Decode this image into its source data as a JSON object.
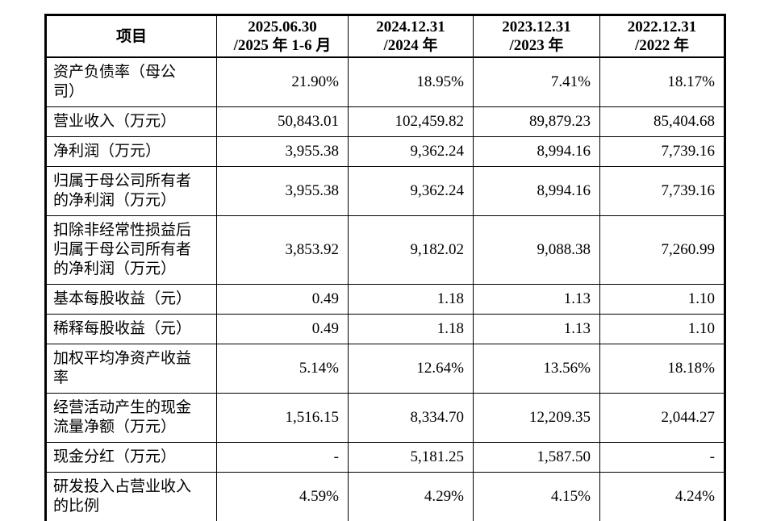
{
  "table": {
    "columns": [
      "项目",
      "2025.06.30\n/2025 年 1-6 月",
      "2024.12.31\n/2024 年",
      "2023.12.31\n/2023 年",
      "2022.12.31\n/2022 年"
    ],
    "rows": [
      {
        "label": "资产负债率（母公\n司）",
        "values": [
          "21.90%",
          "18.95%",
          "7.41%",
          "18.17%"
        ]
      },
      {
        "label": "营业收入（万元）",
        "values": [
          "50,843.01",
          "102,459.82",
          "89,879.23",
          "85,404.68"
        ]
      },
      {
        "label": "净利润（万元）",
        "values": [
          "3,955.38",
          "9,362.24",
          "8,994.16",
          "7,739.16"
        ]
      },
      {
        "label": "归属于母公司所有者\n的净利润（万元）",
        "values": [
          "3,955.38",
          "9,362.24",
          "8,994.16",
          "7,739.16"
        ]
      },
      {
        "label": "扣除非经常性损益后\n归属于母公司所有者\n的净利润（万元）",
        "values": [
          "3,853.92",
          "9,182.02",
          "9,088.38",
          "7,260.99"
        ]
      },
      {
        "label": "基本每股收益（元）",
        "values": [
          "0.49",
          "1.18",
          "1.13",
          "1.10"
        ]
      },
      {
        "label": "稀释每股收益（元）",
        "values": [
          "0.49",
          "1.18",
          "1.13",
          "1.10"
        ]
      },
      {
        "label": "加权平均净资产收益\n率",
        "values": [
          "5.14%",
          "12.64%",
          "13.56%",
          "18.18%"
        ]
      },
      {
        "label": "经营活动产生的现金\n流量净额（万元）",
        "values": [
          "1,516.15",
          "8,334.70",
          "12,209.35",
          "2,044.27"
        ]
      },
      {
        "label": "现金分红（万元）",
        "values": [
          "-",
          "5,181.25",
          "1,587.50",
          "-"
        ]
      },
      {
        "label": "研发投入占营业收入\n的比例",
        "values": [
          "4.59%",
          "4.29%",
          "4.15%",
          "4.24%"
        ]
      }
    ]
  }
}
